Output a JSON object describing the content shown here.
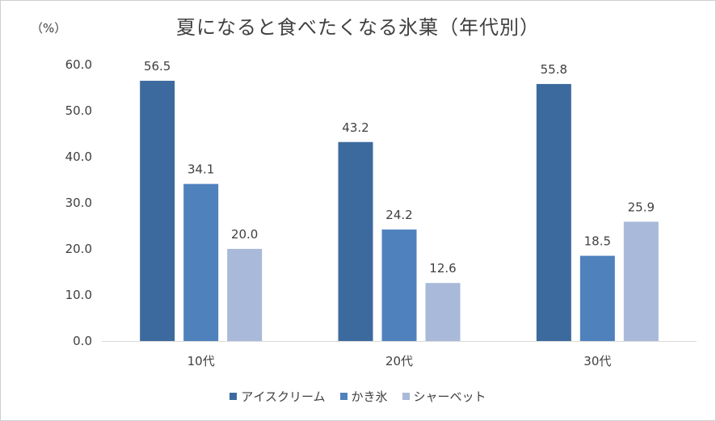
{
  "chart_data": {
    "type": "bar",
    "title": "夏になると食べたくなる氷菓（年代別）",
    "unit": "（%）",
    "categories": [
      "10代",
      "20代",
      "30代"
    ],
    "series": [
      {
        "name": "アイスクリーム",
        "values": [
          56.5,
          43.2,
          55.8
        ],
        "color": "#3d6a9e"
      },
      {
        "name": "かき氷",
        "values": [
          34.1,
          24.2,
          18.5
        ],
        "color": "#4f81bd"
      },
      {
        "name": "シャーベット",
        "values": [
          20.0,
          12.6,
          25.9
        ],
        "color": "#a9b9d9"
      }
    ],
    "ylim": [
      0,
      60
    ],
    "yticks": [
      "0.0",
      "10.0",
      "20.0",
      "30.0",
      "40.0",
      "50.0",
      "60.0"
    ],
    "grid": false,
    "legend_position": "bottom"
  }
}
